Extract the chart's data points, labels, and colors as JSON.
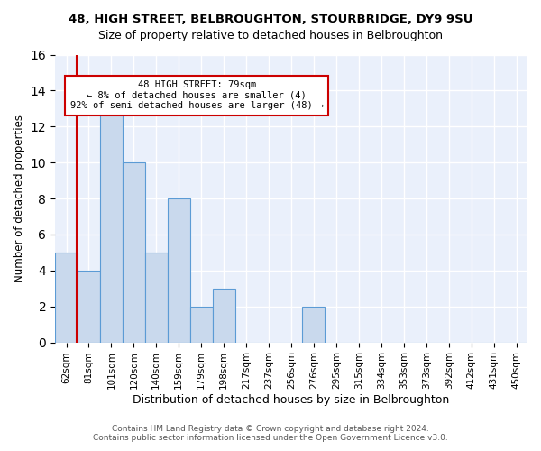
{
  "title1": "48, HIGH STREET, BELBROUGHTON, STOURBRIDGE, DY9 9SU",
  "title2": "Size of property relative to detached houses in Belbroughton",
  "xlabel": "Distribution of detached houses by size in Belbroughton",
  "ylabel": "Number of detached properties",
  "categories": [
    "62sqm",
    "81sqm",
    "101sqm",
    "120sqm",
    "140sqm",
    "159sqm",
    "179sqm",
    "198sqm",
    "217sqm",
    "237sqm",
    "256sqm",
    "276sqm",
    "295sqm",
    "315sqm",
    "334sqm",
    "353sqm",
    "373sqm",
    "392sqm",
    "412sqm",
    "431sqm",
    "450sqm"
  ],
  "values": [
    5,
    4,
    13,
    10,
    5,
    8,
    2,
    3,
    0,
    0,
    0,
    2,
    0,
    0,
    0,
    0,
    0,
    0,
    0,
    0,
    0
  ],
  "bar_color": "#c9d9ed",
  "bar_edge_color": "#5b9bd5",
  "background_color": "#eaf0fb",
  "grid_color": "#ffffff",
  "red_line_x": 0.47,
  "annotation_text": "48 HIGH STREET: 79sqm\n← 8% of detached houses are smaller (4)\n92% of semi-detached houses are larger (48) →",
  "annotation_box_color": "#ffffff",
  "annotation_box_edge_color": "#cc0000",
  "footer_text": "Contains HM Land Registry data © Crown copyright and database right 2024.\nContains public sector information licensed under the Open Government Licence v3.0.",
  "ylim": [
    0,
    16
  ],
  "yticks": [
    0,
    2,
    4,
    6,
    8,
    10,
    12,
    14,
    16
  ]
}
